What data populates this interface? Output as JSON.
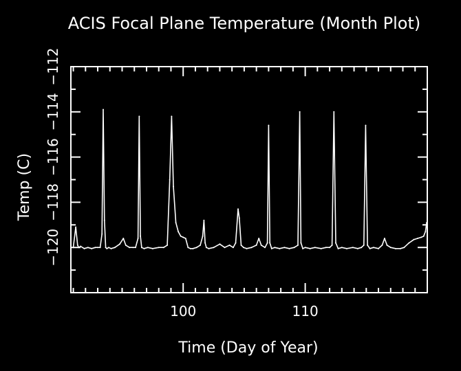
{
  "chart_data": {
    "type": "line",
    "title": "ACIS Focal Plane Temperature (Month Plot)",
    "xlabel": "Time (Day of Year)",
    "ylabel": "Temp (C)",
    "xlim": [
      90.8,
      120.0
    ],
    "ylim": [
      -122,
      -112
    ],
    "x_ticks": [
      100,
      110
    ],
    "x_tick_labels": [
      "100",
      "110"
    ],
    "y_ticks": [
      -120,
      -118,
      -116,
      -114,
      -112
    ],
    "y_tick_labels": [
      "−120",
      "−118",
      "−116",
      "−114",
      "−112"
    ],
    "grid": false,
    "colors": {
      "background": "#000000",
      "foreground": "#ffffff"
    },
    "series": [
      {
        "x": [
          91.0,
          91.2,
          91.35,
          91.45,
          91.6,
          91.9,
          92.2,
          92.5,
          92.8,
          93.0,
          93.2,
          93.35,
          93.45,
          93.55,
          93.65,
          93.75,
          93.9,
          94.1,
          94.4,
          94.8,
          95.1,
          95.3,
          95.6,
          95.9,
          96.1,
          96.3,
          96.4,
          96.5,
          96.6,
          96.8,
          97.1,
          97.5,
          98.0,
          98.4,
          98.7,
          98.9,
          99.05,
          99.2,
          99.4,
          99.6,
          99.8,
          100.0,
          100.2,
          100.4,
          100.6,
          100.8,
          101.1,
          101.4,
          101.6,
          101.7,
          101.8,
          101.9,
          102.1,
          102.5,
          103.0,
          103.4,
          103.8,
          104.1,
          104.3,
          104.5,
          104.6,
          104.75,
          104.95,
          105.2,
          105.6,
          106.0,
          106.2,
          106.4,
          106.7,
          106.9,
          107.0,
          107.1,
          107.25,
          107.5,
          107.9,
          108.3,
          108.7,
          109.1,
          109.4,
          109.55,
          109.65,
          109.8,
          110.0,
          110.4,
          110.8,
          111.3,
          111.7,
          112.0,
          112.2,
          112.35,
          112.5,
          112.7,
          113.0,
          113.4,
          113.9,
          114.3,
          114.6,
          114.8,
          114.95,
          115.1,
          115.3,
          115.6,
          116.0,
          116.3,
          116.5,
          116.7,
          117.0,
          117.4,
          117.8,
          118.1,
          118.5,
          118.9,
          119.2,
          119.5,
          119.7,
          119.85,
          119.95
        ],
        "y": [
          -120.0,
          -119.1,
          -119.9,
          -120.0,
          -119.95,
          -120.05,
          -120.0,
          -120.05,
          -120.0,
          -120.0,
          -120.0,
          -119.4,
          -113.9,
          -118.8,
          -120.0,
          -120.05,
          -120.0,
          -120.05,
          -120.0,
          -119.85,
          -119.6,
          -119.9,
          -120.0,
          -120.0,
          -120.0,
          -119.6,
          -114.2,
          -119.5,
          -120.0,
          -120.05,
          -120.0,
          -120.05,
          -120.0,
          -120.0,
          -119.9,
          -117.0,
          -114.2,
          -117.3,
          -118.9,
          -119.3,
          -119.5,
          -119.55,
          -119.6,
          -120.0,
          -120.05,
          -120.05,
          -120.0,
          -119.9,
          -119.5,
          -118.8,
          -119.8,
          -120.0,
          -120.05,
          -120.0,
          -119.85,
          -120.0,
          -119.9,
          -120.0,
          -119.8,
          -118.3,
          -118.7,
          -119.9,
          -120.0,
          -120.05,
          -120.0,
          -119.9,
          -119.6,
          -119.9,
          -120.0,
          -119.8,
          -114.6,
          -119.8,
          -120.05,
          -120.0,
          -120.05,
          -120.0,
          -120.05,
          -120.0,
          -119.9,
          -114.0,
          -119.8,
          -120.05,
          -120.0,
          -120.05,
          -120.0,
          -120.05,
          -120.0,
          -120.0,
          -119.9,
          -114.0,
          -119.8,
          -120.05,
          -120.0,
          -120.05,
          -120.0,
          -120.05,
          -120.0,
          -119.9,
          -114.6,
          -119.9,
          -120.05,
          -120.0,
          -120.05,
          -119.9,
          -119.6,
          -119.9,
          -120.0,
          -120.05,
          -120.05,
          -120.0,
          -119.8,
          -119.65,
          -119.6,
          -119.55,
          -119.5,
          -119.3,
          -118.9
        ]
      }
    ]
  }
}
